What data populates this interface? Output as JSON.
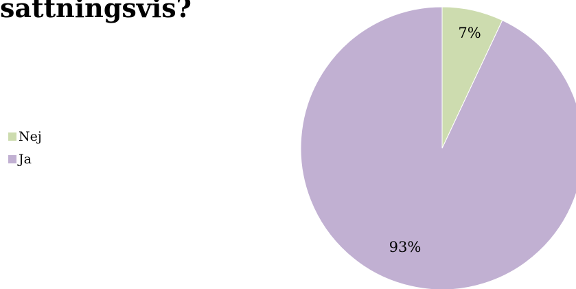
{
  "chart_data": {
    "type": "pie",
    "title": "sättningsvis?",
    "legend_position": "left",
    "categories": [
      "Nej",
      "Ja"
    ],
    "values": [
      7,
      93
    ],
    "labels": [
      "7%",
      "93%"
    ],
    "colors": [
      "#cddcaf",
      "#c1b0d2"
    ]
  }
}
